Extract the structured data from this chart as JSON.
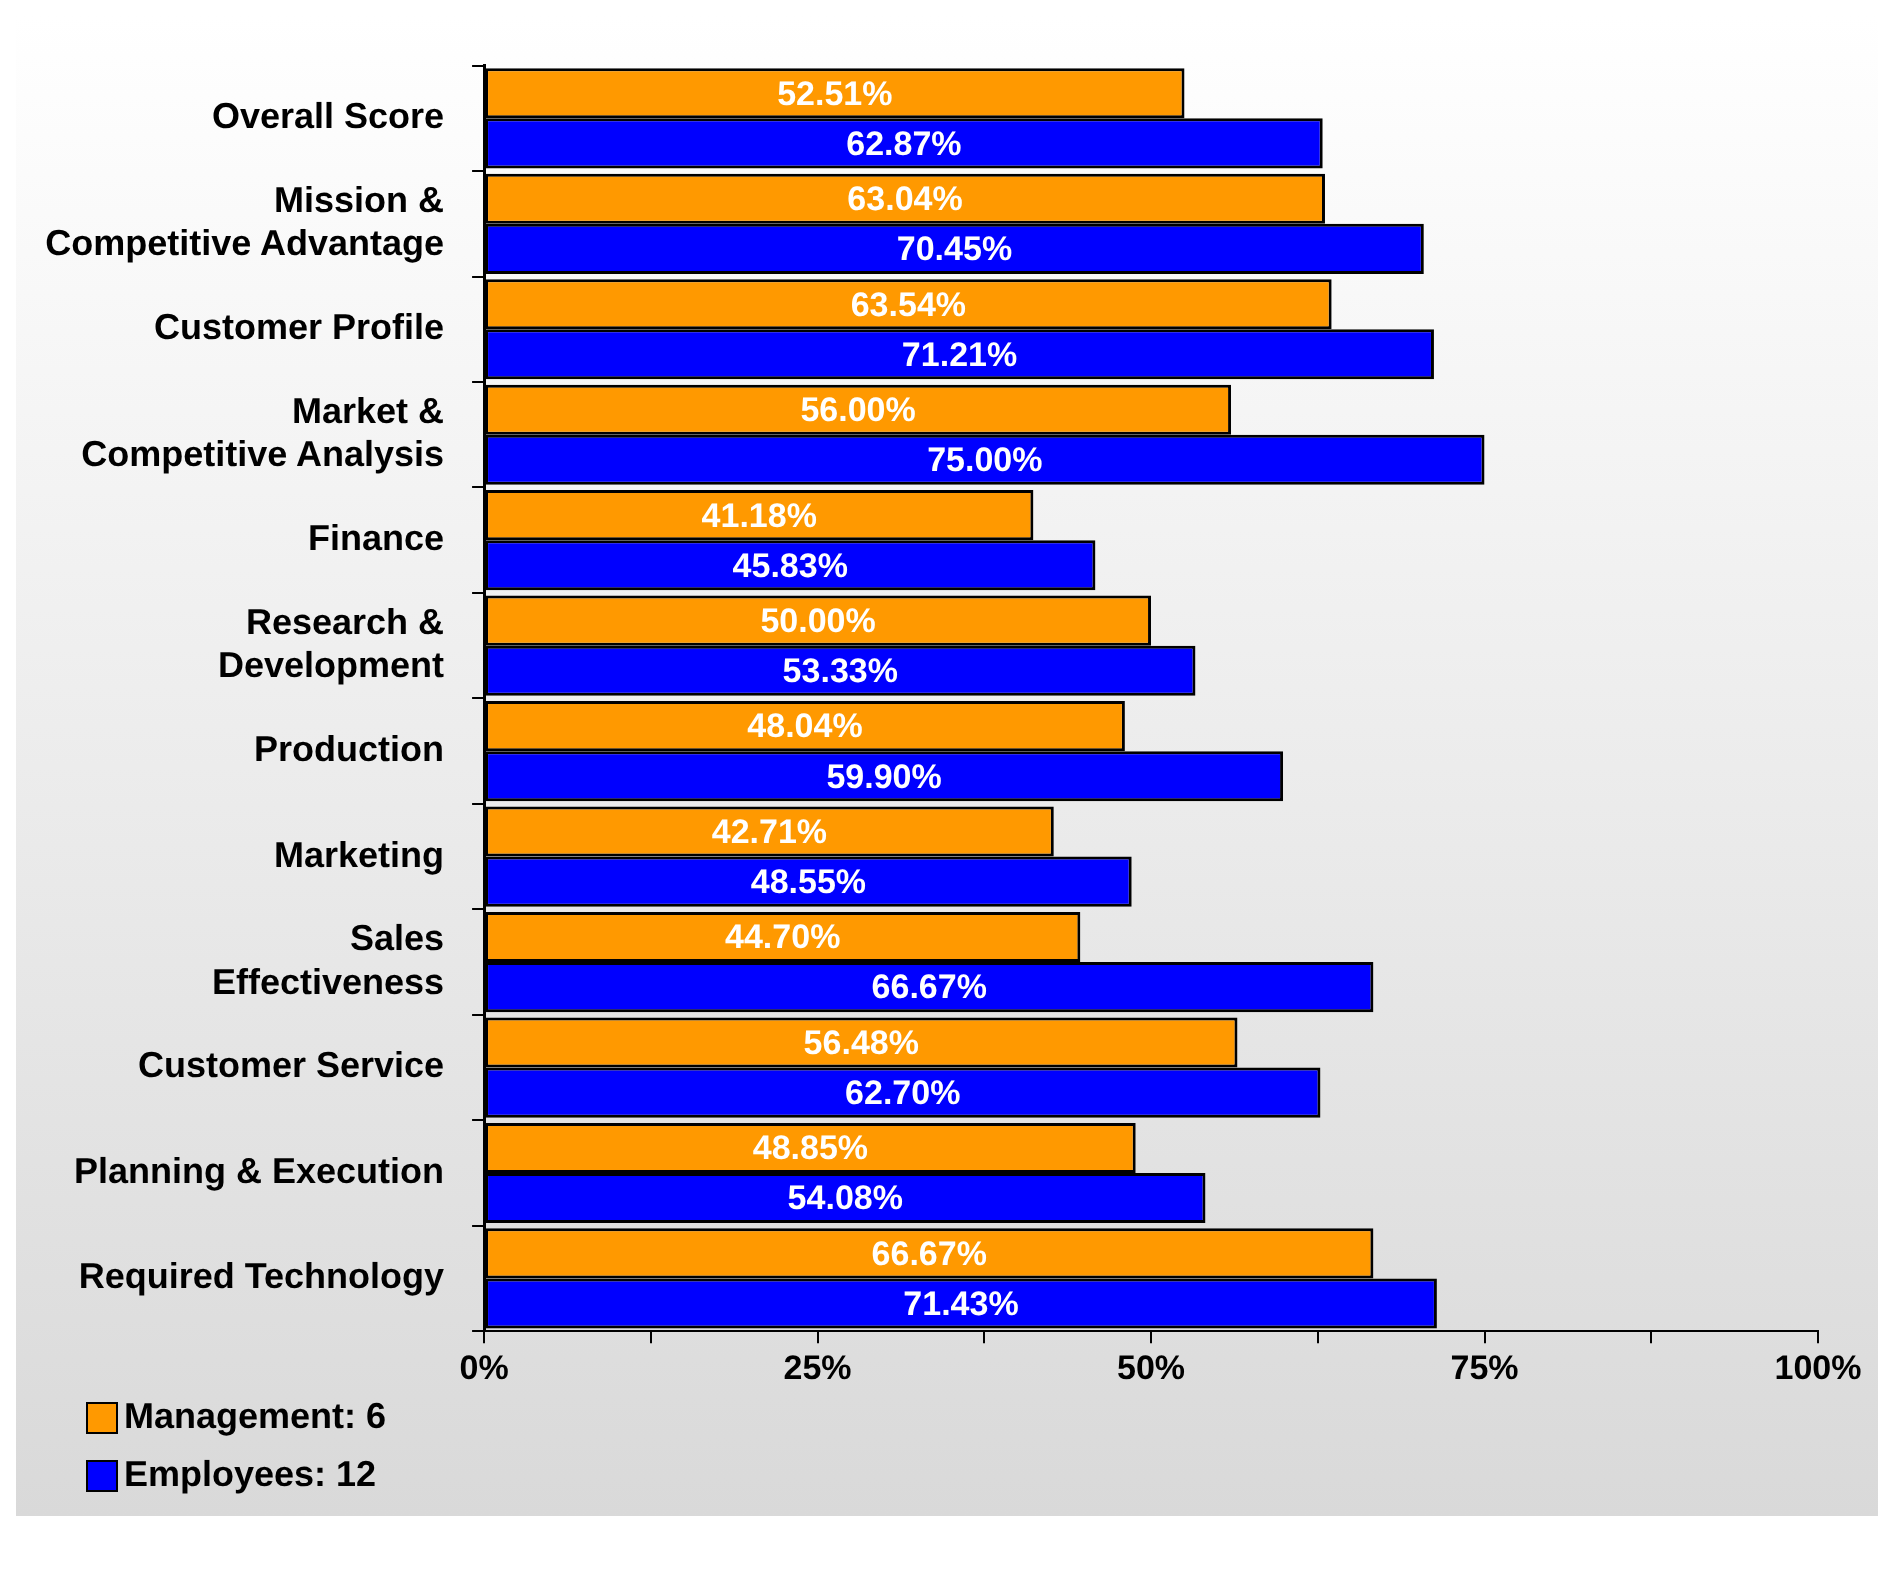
{
  "chart_data": {
    "type": "bar",
    "orientation": "horizontal",
    "categories": [
      "Overall Score",
      "Mission &\nCompetitive Advantage",
      "Customer Profile",
      "Market &\nCompetitive Analysis",
      "Finance",
      "Research &\nDevelopment",
      "Production",
      "Marketing",
      "Sales\nEffectiveness",
      "Customer Service",
      "Planning & Execution",
      "Required Technology"
    ],
    "series": [
      {
        "name": "Management: 6",
        "color": "#ff9900",
        "values": [
          52.51,
          63.04,
          63.54,
          56.0,
          41.18,
          50.0,
          48.04,
          42.71,
          44.7,
          56.48,
          48.85,
          66.67
        ],
        "value_labels": [
          "52.51%",
          "63.04%",
          "63.54%",
          "56.00%",
          "41.18%",
          "50.00%",
          "48.04%",
          "42.71%",
          "44.70%",
          "56.48%",
          "48.85%",
          "66.67%"
        ]
      },
      {
        "name": "Employees: 12",
        "color": "#0000ff",
        "values": [
          62.87,
          70.45,
          71.21,
          75.0,
          45.83,
          53.33,
          59.9,
          48.55,
          66.67,
          62.7,
          54.08,
          71.43
        ],
        "value_labels": [
          "62.87%",
          "70.45%",
          "71.21%",
          "75.00%",
          "45.83%",
          "53.33%",
          "59.90%",
          "48.55%",
          "66.67%",
          "62.70%",
          "54.08%",
          "71.43%"
        ]
      }
    ],
    "xlim": [
      0,
      100
    ],
    "xticks": [
      {
        "value": 0,
        "label": "0%"
      },
      {
        "value": 12.5,
        "label": null
      },
      {
        "value": 25,
        "label": "25%"
      },
      {
        "value": 37.5,
        "label": null
      },
      {
        "value": 50,
        "label": "50%"
      },
      {
        "value": 62.5,
        "label": null
      },
      {
        "value": 75,
        "label": "75%"
      },
      {
        "value": 87.5,
        "label": null
      },
      {
        "value": 100,
        "label": "100%"
      }
    ],
    "grid": false,
    "legend": "bottom left"
  }
}
